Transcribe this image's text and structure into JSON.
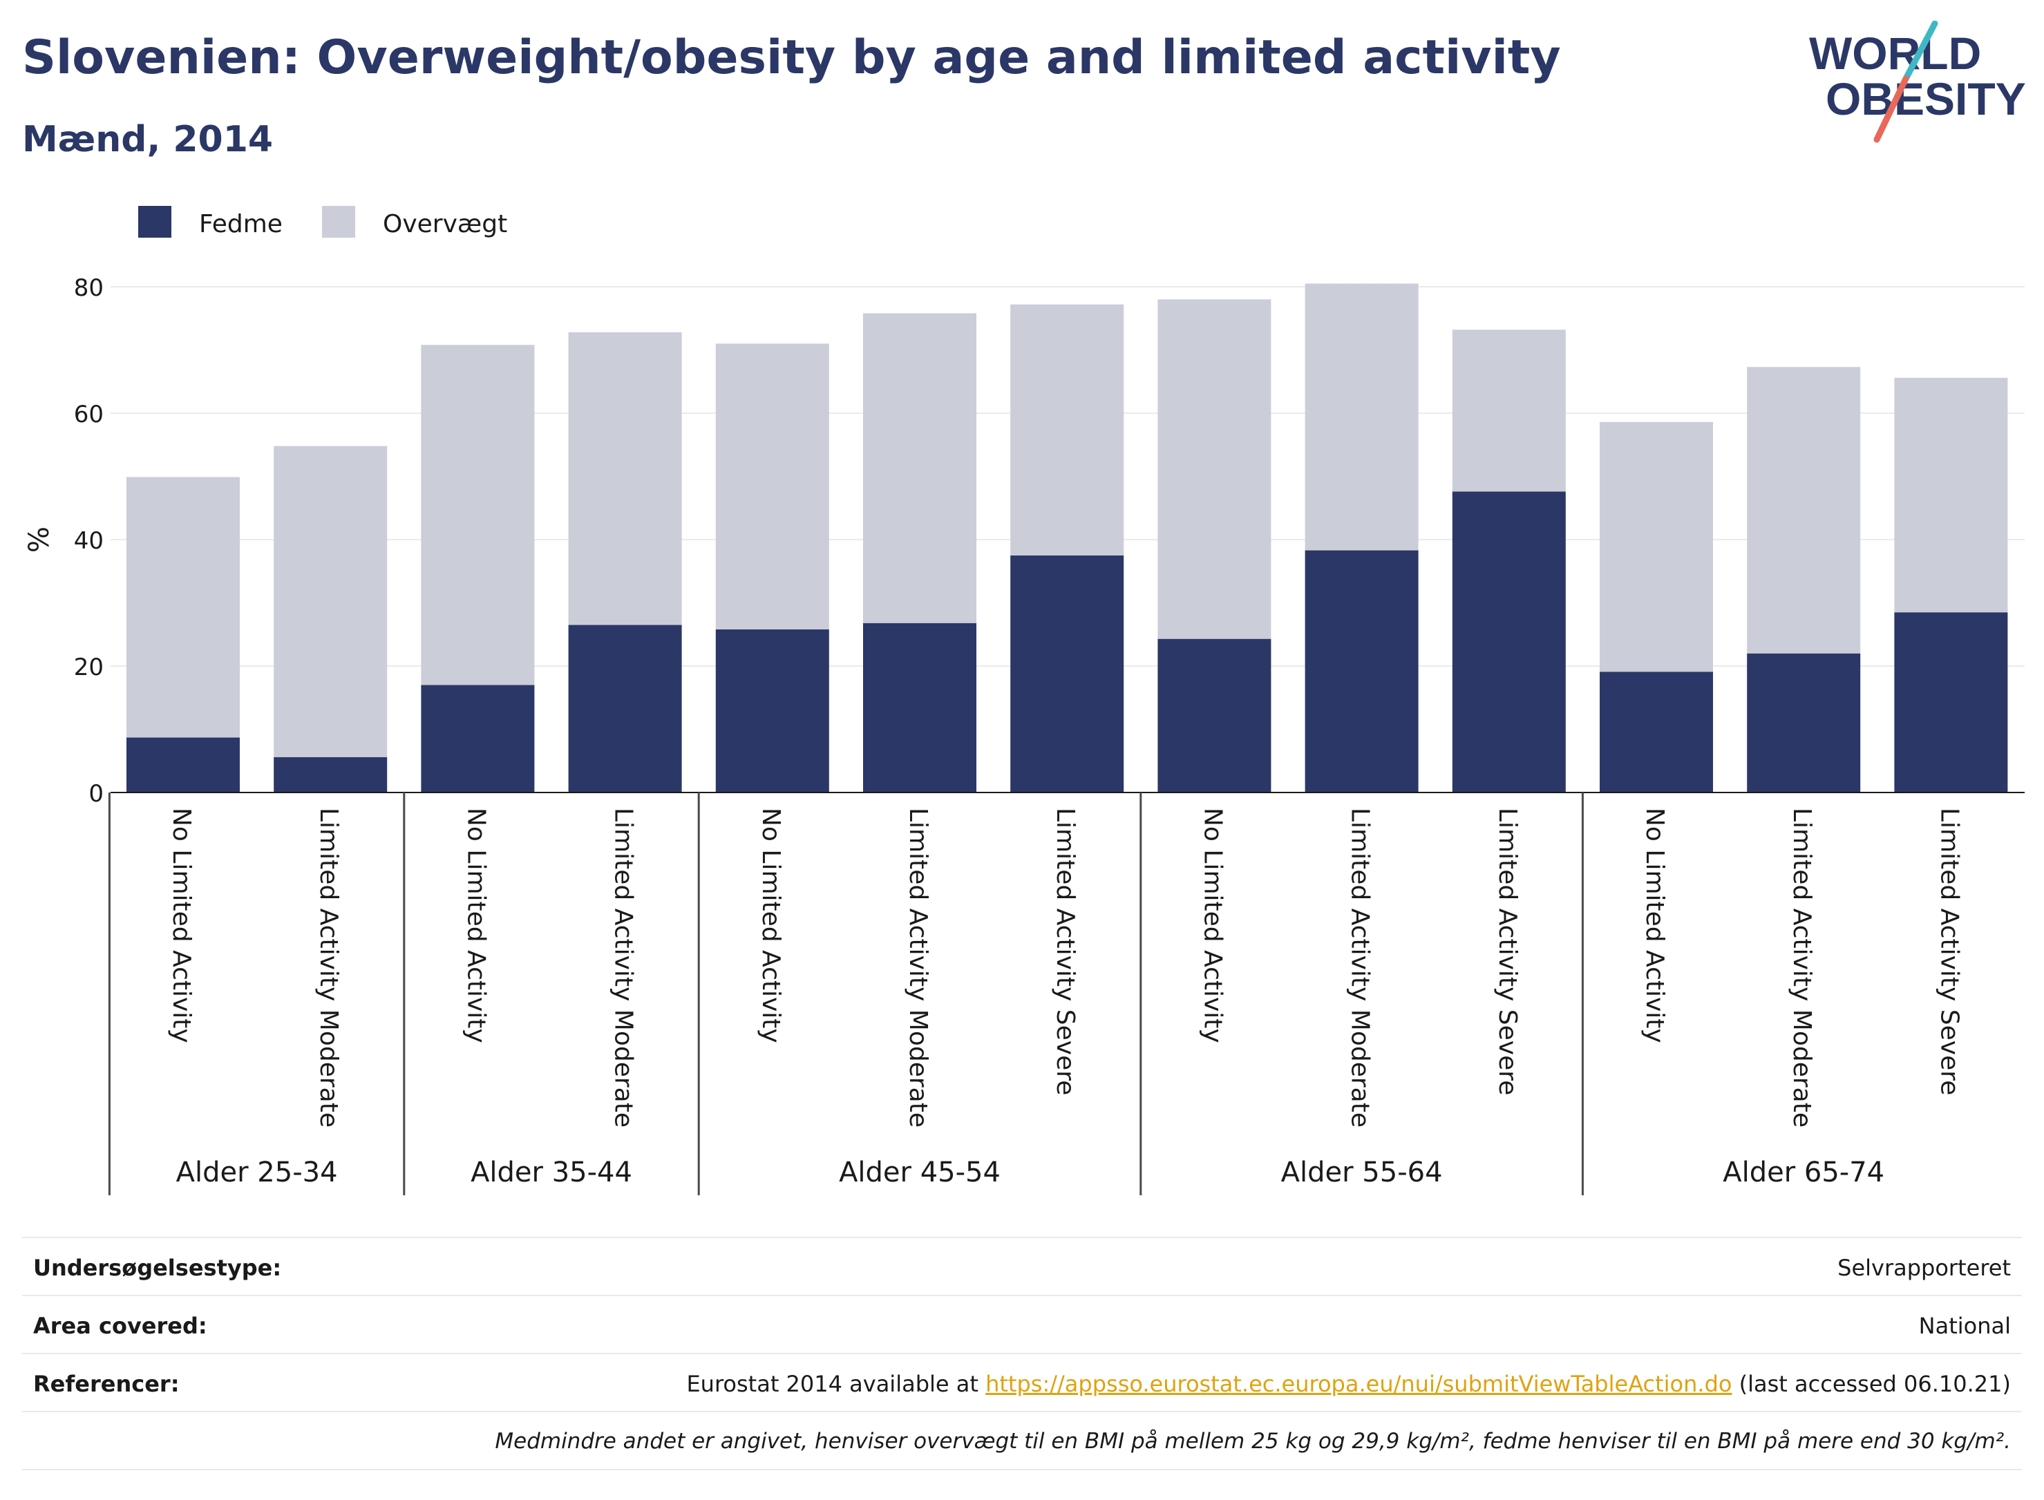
{
  "header": {
    "title": "Slovenien: Overweight/obesity by age and limited activity",
    "subtitle": "Mænd, 2014"
  },
  "logo": {
    "line1": "WORLD",
    "line2": "OBESITY",
    "colors": {
      "text": "#2b3766",
      "slash_teal": "#3fb8c4",
      "slash_coral": "#e8685a"
    }
  },
  "chart_data": {
    "type": "bar",
    "stacked": true,
    "ylabel": "%",
    "ylim": [
      0,
      80
    ],
    "yticks": [
      0,
      20,
      40,
      60,
      80
    ],
    "grid": true,
    "legend_position": "top-left",
    "groups": [
      {
        "label": "Alder 25-34",
        "categories": [
          "No Limited Activity",
          "Limited Activity Moderate"
        ]
      },
      {
        "label": "Alder 35-44",
        "categories": [
          "No Limited Activity",
          "Limited Activity Moderate"
        ]
      },
      {
        "label": "Alder 45-54",
        "categories": [
          "No Limited Activity",
          "Limited Activity Moderate",
          "Limited Activity Severe"
        ]
      },
      {
        "label": "Alder 55-64",
        "categories": [
          "No Limited Activity",
          "Limited Activity Moderate",
          "Limited Activity Severe"
        ]
      },
      {
        "label": "Alder 65-74",
        "categories": [
          "No Limited Activity",
          "Limited Activity Moderate",
          "Limited Activity Severe"
        ]
      }
    ],
    "series": [
      {
        "name": "Fedme",
        "color": "#2b3766",
        "values": [
          8.7,
          5.6,
          17.0,
          26.5,
          25.8,
          26.8,
          37.5,
          24.3,
          38.3,
          47.6,
          19.1,
          22.0,
          28.5
        ]
      },
      {
        "name": "Overvægt",
        "color": "#cbcdd9",
        "values": [
          41.2,
          49.2,
          53.8,
          46.3,
          45.2,
          49.0,
          39.7,
          53.7,
          42.2,
          25.6,
          39.5,
          45.3,
          37.1
        ]
      }
    ]
  },
  "meta": {
    "survey_label": "Undersøgelsestype:",
    "survey_value": "Selvrapporteret",
    "area_label": "Area covered:",
    "area_value": "National",
    "ref_label": "Referencer:",
    "ref_prefix": "Eurostat 2014 available at ",
    "ref_link": "https://appsso.eurostat.ec.europa.eu/nui/submitViewTableAction.do",
    "ref_suffix": " (last accessed 06.10.21)",
    "note": "Medmindre andet er angivet, henviser overvægt til en BMI på mellem 25 kg og 29,9 kg/m², fedme henviser til en BMI på mere end 30 kg/m²."
  }
}
